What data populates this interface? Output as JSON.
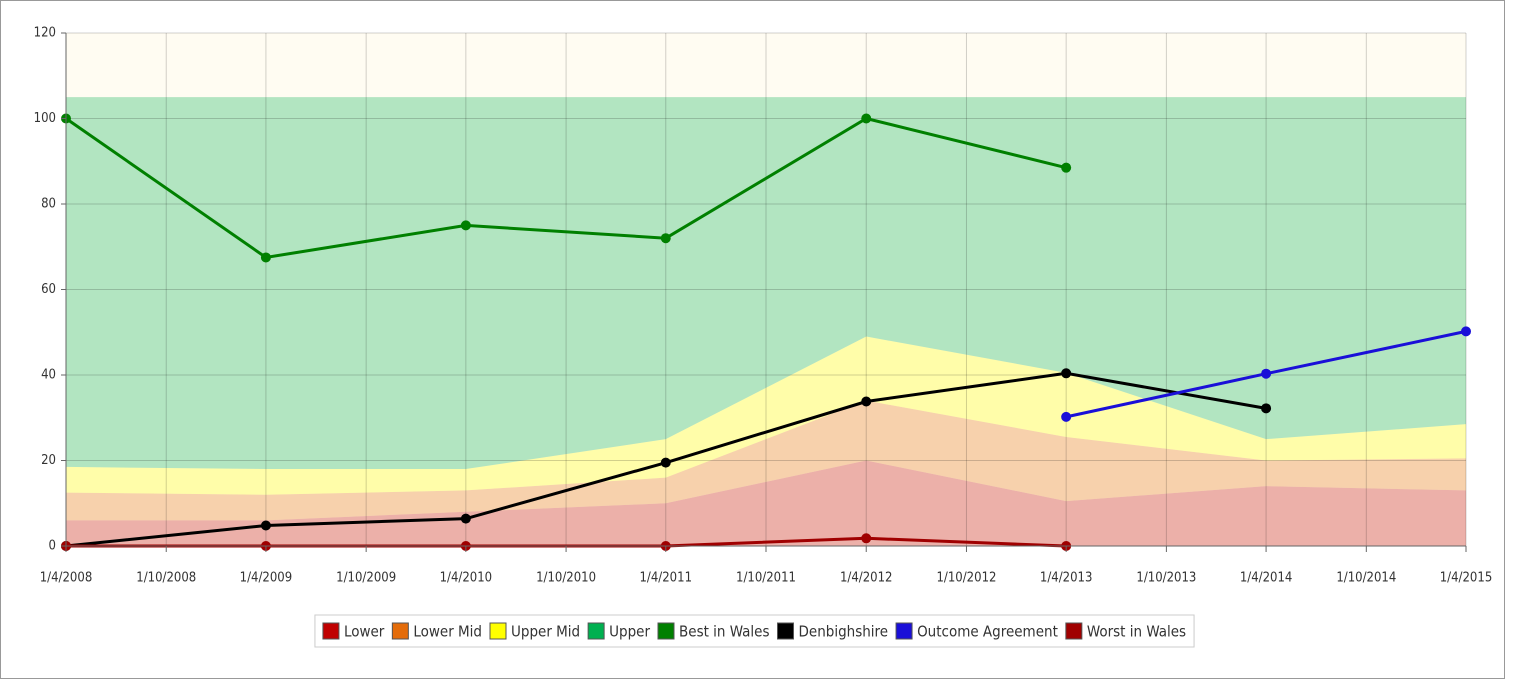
{
  "chart_data": {
    "type": "line",
    "x": [
      "1/4/2008",
      "1/4/2009",
      "1/4/2010",
      "1/4/2011",
      "1/4/2012",
      "1/4/2013",
      "1/4/2014",
      "1/4/2015"
    ],
    "xlim": [
      "1/4/2008",
      "1/4/2015"
    ],
    "xticks": [
      "1/4/2008",
      "1/10/2008",
      "1/4/2009",
      "1/10/2009",
      "1/4/2010",
      "1/10/2010",
      "1/4/2011",
      "1/10/2011",
      "1/4/2012",
      "1/10/2012",
      "1/4/2013",
      "1/10/2013",
      "1/4/2014",
      "1/10/2014",
      "1/4/2015"
    ],
    "ylim": [
      0,
      120
    ],
    "yticks": [
      0,
      20,
      40,
      60,
      80,
      100,
      120
    ],
    "grid": true,
    "legend": "bottom",
    "series": [
      {
        "name": "Lower",
        "type": "area",
        "color": "#c00000",
        "values": [
          6,
          6,
          8,
          10,
          20,
          10.5,
          14,
          13
        ]
      },
      {
        "name": "Lower Mid",
        "type": "area",
        "color": "#e46c0a",
        "values": [
          6.5,
          6,
          5,
          6,
          14,
          15,
          6,
          7.5
        ]
      },
      {
        "name": "Upper Mid",
        "type": "area",
        "color": "#ffff00",
        "values": [
          6,
          6,
          5,
          9,
          15,
          15,
          5,
          8
        ]
      },
      {
        "name": "Upper",
        "type": "area",
        "color": "#00b050",
        "values": [
          86.5,
          87,
          87,
          80,
          56,
          64.5,
          80,
          76.5
        ]
      },
      {
        "name": "Best in Wales",
        "type": "line",
        "color": "#008000",
        "values": [
          100,
          67.5,
          75,
          72,
          100,
          88.5,
          null,
          null
        ]
      },
      {
        "name": "Denbighshire",
        "type": "line",
        "color": "#000000",
        "values": [
          0,
          4.8,
          6.4,
          19.5,
          33.8,
          40.4,
          32.2,
          null
        ]
      },
      {
        "name": "Outcome Agreement",
        "type": "line",
        "color": "#1a0fd8",
        "values": [
          null,
          null,
          null,
          null,
          null,
          30.2,
          40.3,
          50.2
        ]
      },
      {
        "name": "Worst in Wales",
        "type": "line",
        "color": "#a00000",
        "values": [
          0,
          0,
          0,
          0,
          1.8,
          0,
          null,
          null
        ]
      }
    ]
  }
}
